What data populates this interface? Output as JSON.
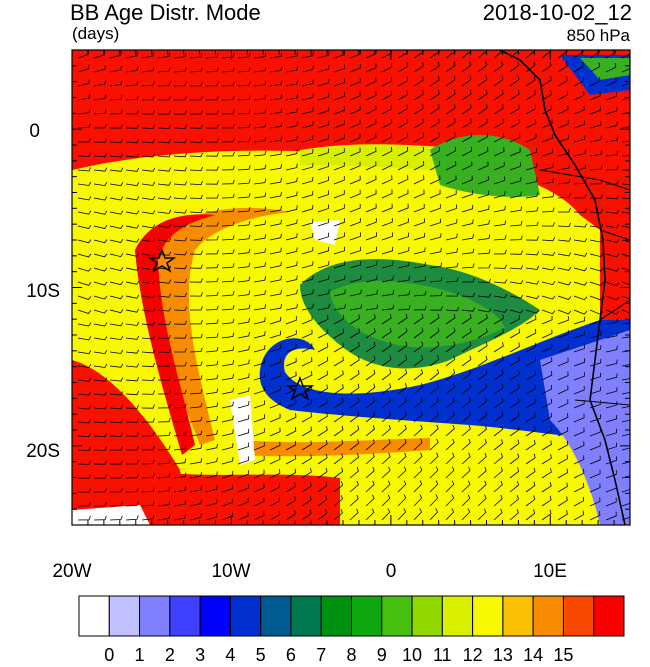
{
  "header": {
    "title": "BB Age Distr. Mode",
    "units": "(days)",
    "datetime": "2018-10-02_12",
    "level": "850 hPa"
  },
  "axes": {
    "lon_labels": [
      "20W",
      "10W",
      "0",
      "10E"
    ],
    "lat_labels": [
      "0",
      "10S",
      "20S"
    ]
  },
  "colorbar": {
    "labels": [
      "0",
      "1",
      "2",
      "3",
      "4",
      "5",
      "6",
      "7",
      "8",
      "9",
      "10",
      "11",
      "12",
      "13",
      "14",
      "15"
    ],
    "colors": [
      "#ffffff",
      "#c0c0ff",
      "#8080ff",
      "#4040ff",
      "#0000ff",
      "#0030d0",
      "#005c90",
      "#007850",
      "#009010",
      "#10a810",
      "#48c010",
      "#90d800",
      "#d8f000",
      "#f8f800",
      "#f8c000",
      "#f88c00",
      "#f84800",
      "#f80000"
    ]
  },
  "map": {
    "fields": {
      "red": "#f81000",
      "orange": "#f88c00",
      "yellow": "#f8f800",
      "yellow_green": "#d8f000",
      "green": "#38b020",
      "dark_green": "#1e8c40",
      "blue": "#0030d0",
      "light_blue": "#8080ff",
      "white": "#ffffff"
    },
    "markers": [
      "star-1",
      "star-2"
    ]
  }
}
